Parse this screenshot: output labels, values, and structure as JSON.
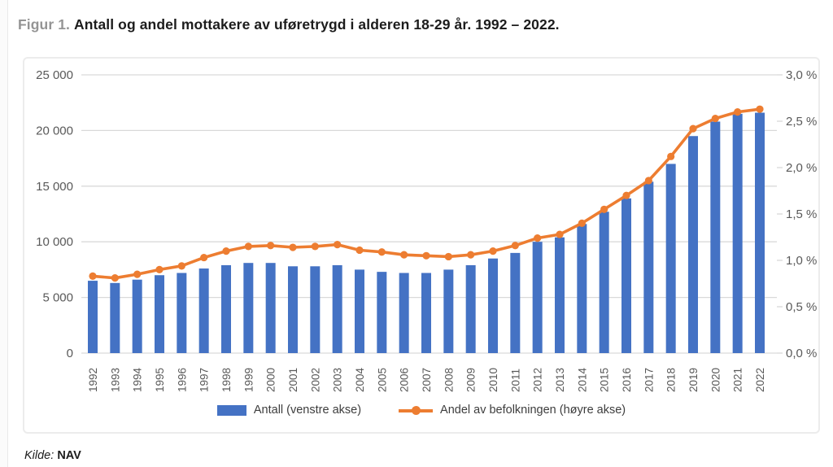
{
  "header": {
    "figure_label": "Figur 1.",
    "title": "Antall og andel mottakere av uføretrygd i alderen 18-29 år. 1992 – 2022."
  },
  "footer": {
    "source_label": "Kilde:",
    "source_value": "NAV"
  },
  "colors": {
    "bar": "#4472C4",
    "line": "#ED7D31",
    "grid": "#D9D9D9",
    "axis_text": "#595959"
  },
  "chart_data": {
    "type": "combo",
    "categories": [
      "1992",
      "1993",
      "1994",
      "1995",
      "1996",
      "1997",
      "1998",
      "1999",
      "2000",
      "2001",
      "2002",
      "2003",
      "2004",
      "2005",
      "2006",
      "2007",
      "2008",
      "2009",
      "2010",
      "2011",
      "2012",
      "2013",
      "2014",
      "2015",
      "2016",
      "2017",
      "2018",
      "2019",
      "2020",
      "2021",
      "2022"
    ],
    "series": [
      {
        "name": "Antall (venstre akse)",
        "type": "bar",
        "axis": "left",
        "values": [
          6500,
          6300,
          6600,
          7000,
          7200,
          7600,
          7900,
          8100,
          8100,
          7800,
          7800,
          7900,
          7500,
          7300,
          7200,
          7200,
          7500,
          7900,
          8500,
          9000,
          10000,
          10400,
          11600,
          12700,
          13900,
          15400,
          17000,
          19500,
          20800,
          21500,
          21600
        ]
      },
      {
        "name": "Andel av befolkningen (høyre akse)",
        "type": "line",
        "axis": "right",
        "values": [
          0.83,
          0.81,
          0.85,
          0.9,
          0.94,
          1.03,
          1.1,
          1.15,
          1.16,
          1.14,
          1.15,
          1.17,
          1.11,
          1.09,
          1.06,
          1.05,
          1.04,
          1.06,
          1.1,
          1.16,
          1.24,
          1.28,
          1.4,
          1.55,
          1.7,
          1.86,
          2.12,
          2.42,
          2.53,
          2.6,
          2.63
        ]
      }
    ],
    "left_axis": {
      "range": [
        0,
        25000
      ],
      "tick_values": [
        0,
        5000,
        10000,
        15000,
        20000,
        25000
      ],
      "tick_labels": [
        "0",
        "5 000",
        "10 000",
        "15 000",
        "20 000",
        "25 000"
      ]
    },
    "right_axis": {
      "range": [
        0,
        3
      ],
      "tick_values": [
        0,
        0.5,
        1,
        1.5,
        2,
        2.5,
        3
      ],
      "tick_labels": [
        "0,0 %",
        "0,5 %",
        "1,0 %",
        "1,5 %",
        "2,0 %",
        "2,5 %",
        "3,0 %"
      ]
    },
    "grid": true,
    "legend_position": "bottom"
  }
}
